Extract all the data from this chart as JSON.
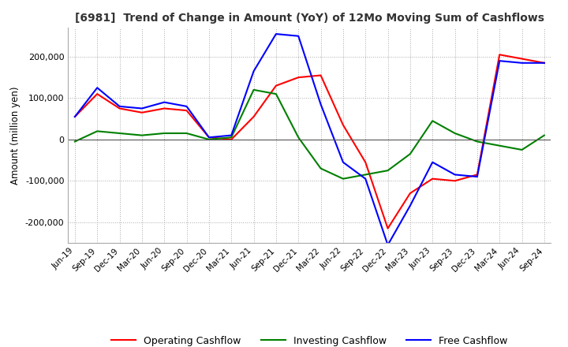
{
  "title": "[6981]  Trend of Change in Amount (YoY) of 12Mo Moving Sum of Cashflows",
  "ylabel": "Amount (million yen)",
  "ylim": [
    -250000,
    270000
  ],
  "yticks": [
    -200000,
    -100000,
    0,
    100000,
    200000
  ],
  "x_labels": [
    "Jun-19",
    "Sep-19",
    "Dec-19",
    "Mar-20",
    "Jun-20",
    "Sep-20",
    "Dec-20",
    "Mar-21",
    "Jun-21",
    "Sep-21",
    "Dec-21",
    "Mar-22",
    "Jun-22",
    "Sep-22",
    "Dec-22",
    "Mar-23",
    "Jun-23",
    "Sep-23",
    "Dec-23",
    "Mar-24",
    "Jun-24",
    "Sep-24"
  ],
  "operating": [
    55000,
    110000,
    75000,
    65000,
    75000,
    70000,
    5000,
    0,
    55000,
    130000,
    150000,
    155000,
    35000,
    -55000,
    -215000,
    -130000,
    -95000,
    -100000,
    -85000,
    205000,
    195000,
    185000
  ],
  "investing": [
    -5000,
    20000,
    15000,
    10000,
    15000,
    15000,
    0,
    5000,
    120000,
    110000,
    5000,
    -70000,
    -95000,
    -85000,
    -75000,
    -35000,
    45000,
    15000,
    -5000,
    -15000,
    -25000,
    10000
  ],
  "free": [
    55000,
    125000,
    80000,
    75000,
    90000,
    80000,
    5000,
    10000,
    165000,
    255000,
    250000,
    85000,
    -55000,
    -95000,
    -255000,
    -160000,
    -55000,
    -85000,
    -90000,
    190000,
    185000,
    185000
  ],
  "operating_color": "#ff0000",
  "investing_color": "#008000",
  "free_color": "#0000ff",
  "grid_color": "#aaaaaa",
  "background_color": "#ffffff",
  "zero_line_color": "#555555"
}
